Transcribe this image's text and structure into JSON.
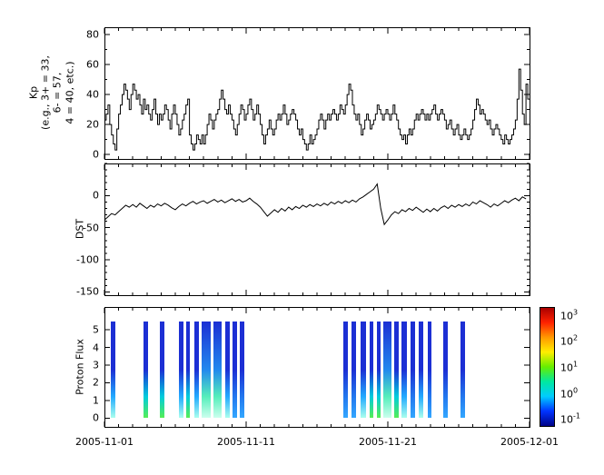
{
  "colors": {
    "line": "#000000",
    "frame": "#000000",
    "background": "#ffffff"
  },
  "x_axis": {
    "tick_labels": [
      "2005-11-01",
      "2005-11-11",
      "2005-11-21",
      "2005-12-01"
    ],
    "tick_days": [
      0,
      10,
      20,
      30
    ],
    "minor_step_days": 1,
    "range_days": [
      0,
      30
    ]
  },
  "panels": {
    "kp": {
      "ylabel": "Kp\n(e.g., 3+ = 33,\n6- = 57,\n4 = 40, etc.)"
    },
    "dst": {
      "ylabel": "DST"
    },
    "proton": {
      "ylabel": "Proton Flux"
    }
  },
  "chart_data": [
    {
      "type": "line",
      "subtype": "step",
      "name": "kp",
      "title": "",
      "ylabel": "Kp (e.g., 3+ = 33, 6- = 57, 4 = 40, etc.)",
      "x_start": "2005-11-01",
      "x_end": "2005-12-01",
      "x_step_hours": 3,
      "ylim": [
        -3,
        85
      ],
      "yticks": [
        0,
        20,
        40,
        60,
        80
      ],
      "y_minor_step": 10,
      "values": [
        23,
        27,
        33,
        20,
        13,
        7,
        3,
        17,
        27,
        33,
        40,
        47,
        43,
        37,
        30,
        40,
        47,
        43,
        37,
        40,
        33,
        27,
        37,
        30,
        33,
        27,
        23,
        30,
        37,
        27,
        20,
        27,
        23,
        27,
        33,
        30,
        23,
        17,
        27,
        33,
        27,
        20,
        13,
        17,
        23,
        27,
        33,
        37,
        13,
        7,
        3,
        7,
        13,
        10,
        7,
        13,
        7,
        13,
        20,
        27,
        23,
        17,
        23,
        27,
        30,
        37,
        43,
        37,
        30,
        27,
        33,
        27,
        23,
        17,
        13,
        20,
        27,
        33,
        30,
        23,
        27,
        33,
        37,
        30,
        23,
        27,
        33,
        27,
        20,
        13,
        7,
        13,
        17,
        23,
        17,
        13,
        17,
        23,
        27,
        23,
        27,
        33,
        27,
        20,
        23,
        27,
        30,
        27,
        23,
        17,
        13,
        17,
        10,
        7,
        3,
        7,
        13,
        7,
        10,
        13,
        17,
        23,
        27,
        23,
        17,
        23,
        27,
        23,
        27,
        30,
        27,
        23,
        27,
        33,
        30,
        27,
        33,
        40,
        47,
        43,
        33,
        27,
        23,
        27,
        20,
        13,
        17,
        23,
        27,
        23,
        17,
        20,
        23,
        27,
        33,
        30,
        27,
        23,
        27,
        30,
        27,
        23,
        27,
        33,
        27,
        23,
        17,
        13,
        10,
        13,
        7,
        13,
        17,
        13,
        17,
        23,
        27,
        23,
        27,
        30,
        27,
        23,
        27,
        23,
        27,
        30,
        33,
        27,
        23,
        27,
        30,
        27,
        23,
        17,
        20,
        23,
        17,
        13,
        17,
        20,
        13,
        10,
        13,
        17,
        13,
        10,
        13,
        17,
        23,
        30,
        37,
        33,
        27,
        30,
        27,
        23,
        20,
        23,
        17,
        13,
        17,
        20,
        17,
        13,
        10,
        7,
        13,
        10,
        7,
        10,
        13,
        17,
        23,
        37,
        57,
        43,
        27,
        20,
        47,
        37
      ]
    },
    {
      "type": "line",
      "name": "dst",
      "title": "",
      "ylabel": "DST",
      "x_start": "2005-11-01",
      "x_end": "2005-12-01",
      "x_step_hours": 6,
      "ylim": [
        -155,
        50
      ],
      "yticks": [
        0,
        -50,
        -100,
        -150
      ],
      "y_minor_step": 10,
      "values": [
        -38,
        -33,
        -28,
        -30,
        -25,
        -20,
        -15,
        -18,
        -14,
        -18,
        -12,
        -16,
        -20,
        -15,
        -18,
        -13,
        -16,
        -12,
        -15,
        -19,
        -22,
        -17,
        -13,
        -16,
        -12,
        -9,
        -13,
        -10,
        -8,
        -12,
        -9,
        -6,
        -10,
        -7,
        -11,
        -8,
        -5,
        -9,
        -6,
        -10,
        -8,
        -4,
        -9,
        -13,
        -18,
        -25,
        -32,
        -27,
        -22,
        -26,
        -20,
        -24,
        -18,
        -22,
        -17,
        -20,
        -15,
        -18,
        -14,
        -17,
        -13,
        -16,
        -12,
        -15,
        -10,
        -13,
        -9,
        -12,
        -8,
        -11,
        -7,
        -10,
        -5,
        -2,
        2,
        6,
        10,
        18,
        -20,
        -45,
        -38,
        -30,
        -25,
        -28,
        -22,
        -25,
        -20,
        -23,
        -18,
        -22,
        -26,
        -21,
        -25,
        -20,
        -24,
        -19,
        -16,
        -20,
        -15,
        -18,
        -14,
        -17,
        -13,
        -16,
        -10,
        -13,
        -8,
        -11,
        -14,
        -18,
        -13,
        -16,
        -12,
        -8,
        -11,
        -7,
        -4,
        -8,
        -2,
        -5
      ]
    },
    {
      "type": "heatmap",
      "name": "proton-flux",
      "title": "",
      "ylabel": "Proton Flux",
      "x_start": "2005-11-01",
      "x_end": "2005-12-01",
      "ylim": [
        -0.5,
        6.3
      ],
      "yticks": [
        0,
        1,
        2,
        3,
        4,
        5
      ],
      "y_minor_step": 0,
      "bar_y_extent": [
        0,
        5.5
      ],
      "bars": [
        {
          "d0": 0.45,
          "d1": 0.75,
          "grad": "c"
        },
        {
          "d0": 2.75,
          "d1": 3.05,
          "grad": "g"
        },
        {
          "d0": 3.9,
          "d1": 4.25,
          "grad": "g"
        },
        {
          "d0": 5.25,
          "d1": 5.55,
          "grad": "c"
        },
        {
          "d0": 5.75,
          "d1": 6.05,
          "grad": "g"
        },
        {
          "d0": 6.35,
          "d1": 6.65,
          "grad": "c"
        },
        {
          "d0": 6.85,
          "d1": 7.5,
          "grad": "w"
        },
        {
          "d0": 7.7,
          "d1": 8.3,
          "grad": "w"
        },
        {
          "d0": 8.5,
          "d1": 8.85,
          "grad": "c"
        },
        {
          "d0": 9.05,
          "d1": 9.35,
          "grad": "b"
        },
        {
          "d0": 9.55,
          "d1": 9.85,
          "grad": "b"
        },
        {
          "d0": 16.85,
          "d1": 17.15,
          "grad": "b"
        },
        {
          "d0": 17.45,
          "d1": 17.75,
          "grad": "b"
        },
        {
          "d0": 18.05,
          "d1": 18.45,
          "grad": "c"
        },
        {
          "d0": 18.7,
          "d1": 19.0,
          "grad": "g"
        },
        {
          "d0": 19.2,
          "d1": 19.5,
          "grad": "g"
        },
        {
          "d0": 19.7,
          "d1": 20.25,
          "grad": "w"
        },
        {
          "d0": 20.45,
          "d1": 20.75,
          "grad": "g"
        },
        {
          "d0": 20.95,
          "d1": 21.35,
          "grad": "c"
        },
        {
          "d0": 21.6,
          "d1": 21.9,
          "grad": "b"
        },
        {
          "d0": 22.2,
          "d1": 22.5,
          "grad": "c"
        },
        {
          "d0": 22.8,
          "d1": 23.1,
          "grad": "b"
        },
        {
          "d0": 23.9,
          "d1": 24.2,
          "grad": "b"
        },
        {
          "d0": 25.1,
          "d1": 25.45,
          "grad": "b"
        }
      ],
      "gradients": {
        "b": [
          "#1c2fd4",
          "#1c2fd4",
          "#2277ee",
          "#33a7ff"
        ],
        "c": [
          "#1c2fd4",
          "#1c2fd4",
          "#22aaff",
          "#aaffee"
        ],
        "g": [
          "#1c2fd4",
          "#1c2fd4",
          "#00ccdd",
          "#55ee55"
        ],
        "w": [
          "#1c2fd4",
          "#2288ee",
          "#55eebb",
          "#ccffee"
        ]
      },
      "colorbar": {
        "base": "10",
        "exponents": [
          "3",
          "2",
          "1",
          "0",
          "-1"
        ],
        "range_exp": [
          -1.3,
          3.3
        ],
        "colors_top_to_bottom": [
          "#aa0000",
          "#ff2200",
          "#ff9900",
          "#ffee00",
          "#66ee00",
          "#00e8a0",
          "#00ccff",
          "#0033ff",
          "#000288"
        ]
      }
    }
  ]
}
